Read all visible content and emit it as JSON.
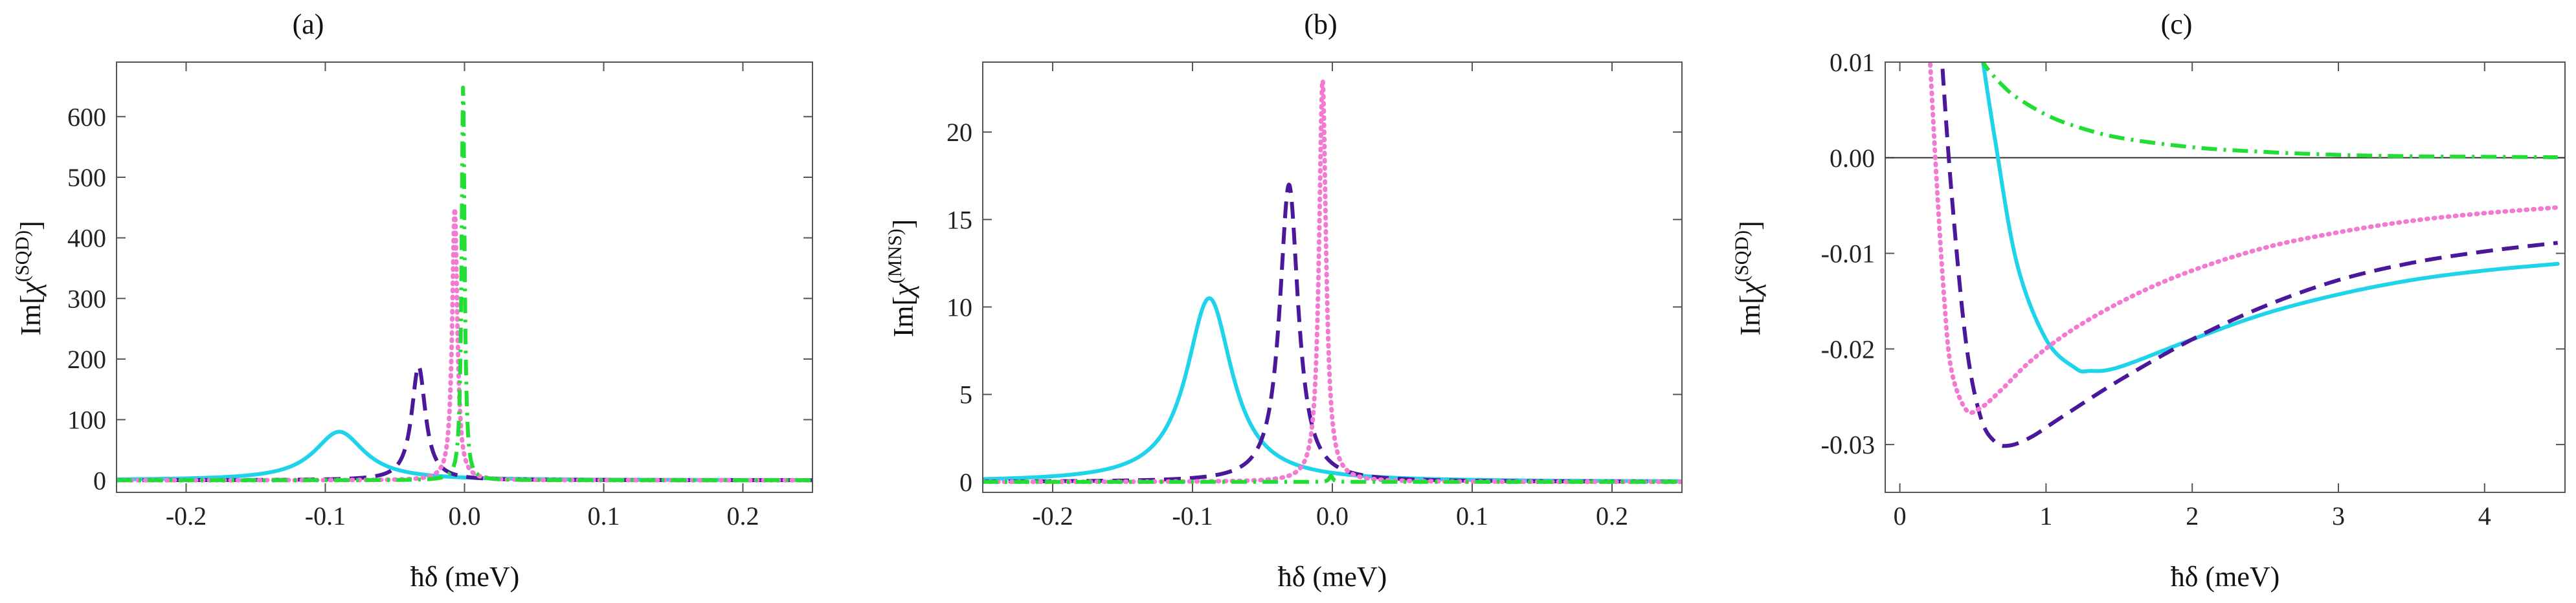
{
  "colors": {
    "cyan": "#1fd3ea",
    "indigo": "#4b189b",
    "pink": "#f27bd1",
    "green": "#22dd33"
  },
  "chart_data": [
    {
      "id": "a",
      "type": "line",
      "title": "(a)",
      "xlabel": "ħδ (meV)",
      "ylabel": "Im[χ(SQD)]",
      "ylabel_base": "Im[",
      "ylabel_chi": "χ",
      "ylabel_sup": "(SQD)",
      "ylabel_end": "]",
      "xlim": [
        -0.25,
        0.25
      ],
      "ylim": [
        -20,
        690
      ],
      "xticks": [
        -0.2,
        -0.1,
        0.0,
        0.1,
        0.2
      ],
      "xtick_labels": [
        "-0.2",
        "-0.1",
        "0.0",
        "0.1",
        "0.2"
      ],
      "yticks": [
        0,
        100,
        200,
        300,
        400,
        500,
        600
      ],
      "ytick_labels": [
        "0",
        "100",
        "200",
        "300",
        "400",
        "500",
        "600"
      ],
      "series": [
        {
          "name": "solid-cyan",
          "style": "solid",
          "color": "cyan",
          "kind": "lorentz",
          "x0": -0.09,
          "gamma": 0.022,
          "peak": 80,
          "offset": 0
        },
        {
          "name": "dashed-indigo",
          "style": "dashed",
          "color": "indigo",
          "kind": "lorentz",
          "x0": -0.033,
          "gamma": 0.006,
          "peak": 188,
          "offset": 0
        },
        {
          "name": "dotted-pink",
          "style": "dotted",
          "color": "pink",
          "kind": "lorentz",
          "x0": -0.007,
          "gamma": 0.0022,
          "peak": 450,
          "offset": 0
        },
        {
          "name": "dashdot-green",
          "style": "dashdot",
          "color": "green",
          "kind": "lorentz",
          "x0": -0.001,
          "gamma": 0.0013,
          "peak": 650,
          "offset": 0
        }
      ]
    },
    {
      "id": "b",
      "type": "line",
      "title": "(b)",
      "xlabel": "ħδ (meV)",
      "ylabel": "Im[χ(MNS)]",
      "ylabel_base": "Im[",
      "ylabel_chi": "χ",
      "ylabel_sup": "(MNS)",
      "ylabel_end": "]",
      "xlim": [
        -0.25,
        0.25
      ],
      "ylim": [
        -0.6,
        24
      ],
      "xticks": [
        -0.2,
        -0.1,
        0.0,
        0.1,
        0.2
      ],
      "xtick_labels": [
        "-0.2",
        "-0.1",
        "0.0",
        "0.1",
        "0.2"
      ],
      "yticks": [
        0,
        5,
        10,
        15,
        20
      ],
      "ytick_labels": [
        "0",
        "5",
        "10",
        "15",
        "20"
      ],
      "series": [
        {
          "name": "solid-cyan",
          "style": "solid",
          "color": "cyan",
          "kind": "lorentz",
          "x0": -0.088,
          "gamma": 0.02,
          "peak": 10.5,
          "offset": 0
        },
        {
          "name": "dashed-indigo",
          "style": "dashed",
          "color": "indigo",
          "kind": "lorentz",
          "x0": -0.031,
          "gamma": 0.008,
          "peak": 17,
          "offset": 0
        },
        {
          "name": "dotted-pink",
          "style": "dotted",
          "color": "pink",
          "kind": "lorentz",
          "x0": -0.007,
          "gamma": 0.003,
          "peak": 23,
          "offset": 0
        },
        {
          "name": "dashdot-green",
          "style": "dashdot",
          "color": "green",
          "kind": "lorentz",
          "x0": -0.001,
          "gamma": 0.0015,
          "peak": 0.35,
          "offset": 0
        }
      ]
    },
    {
      "id": "c",
      "type": "line",
      "title": "(c)",
      "xlabel": "ħδ (meV)",
      "ylabel": "Im[χ(SQD)]",
      "ylabel_base": "Im[",
      "ylabel_chi": "χ",
      "ylabel_sup": "(SQD)",
      "ylabel_end": "]",
      "xlim": [
        -0.1,
        4.55
      ],
      "ylim": [
        -0.035,
        0.01
      ],
      "xticks": [
        0,
        1,
        2,
        3,
        4
      ],
      "xtick_labels": [
        "0",
        "1",
        "2",
        "3",
        "4"
      ],
      "yticks": [
        -0.03,
        -0.02,
        -0.01,
        0.0,
        0.01
      ],
      "ytick_labels": [
        "-0.03",
        "-0.02",
        "-0.01",
        "0.00",
        "0.01"
      ],
      "series": [
        {
          "name": "solid-cyan",
          "style": "solid",
          "color": "cyan",
          "kind": "dip",
          "xs": [
            0.55,
            0.65,
            0.8,
            1.0,
            1.2,
            1.3,
            1.5,
            2.0,
            2.5,
            3.0,
            3.5,
            4.0,
            4.5
          ],
          "ys": [
            0.012,
            0.002,
            -0.011,
            -0.019,
            -0.022,
            -0.0223,
            -0.0219,
            -0.019,
            -0.0163,
            -0.0143,
            -0.0128,
            -0.0118,
            -0.0111
          ]
        },
        {
          "name": "dashed-indigo",
          "style": "dashed",
          "color": "indigo",
          "kind": "dip",
          "xs": [
            0.28,
            0.35,
            0.45,
            0.55,
            0.65,
            0.75,
            0.9,
            1.1,
            1.5,
            2.0,
            2.5,
            3.0,
            3.5,
            4.0,
            4.5
          ],
          "ys": [
            0.012,
            -0.003,
            -0.019,
            -0.027,
            -0.0297,
            -0.0301,
            -0.0292,
            -0.0272,
            -0.0233,
            -0.019,
            -0.0155,
            -0.0128,
            -0.011,
            -0.0098,
            -0.0089
          ]
        },
        {
          "name": "dotted-pink",
          "style": "dotted",
          "color": "pink",
          "kind": "dip",
          "xs": [
            0.2,
            0.25,
            0.3,
            0.35,
            0.45,
            0.55,
            0.7,
            0.9,
            1.2,
            1.6,
            2.0,
            2.5,
            3.0,
            3.5,
            4.0,
            4.5
          ],
          "ys": [
            0.012,
            -0.002,
            -0.014,
            -0.022,
            -0.0263,
            -0.0262,
            -0.0242,
            -0.0212,
            -0.0178,
            -0.0144,
            -0.0118,
            -0.0094,
            -0.0078,
            -0.0066,
            -0.0058,
            -0.0052
          ]
        },
        {
          "name": "dashdot-green",
          "style": "dashdot",
          "color": "green",
          "kind": "dip",
          "xs": [
            0.55,
            0.6,
            0.7,
            0.8,
            1.0,
            1.2,
            1.5,
            2.0,
            2.5,
            3.0,
            3.5,
            4.0,
            4.5
          ],
          "ys": [
            0.0105,
            0.0093,
            0.0076,
            0.0063,
            0.0045,
            0.0033,
            0.0021,
            0.0011,
            0.0006,
            0.0003,
            0.00015,
            0.0001,
            5e-05
          ]
        }
      ]
    }
  ]
}
